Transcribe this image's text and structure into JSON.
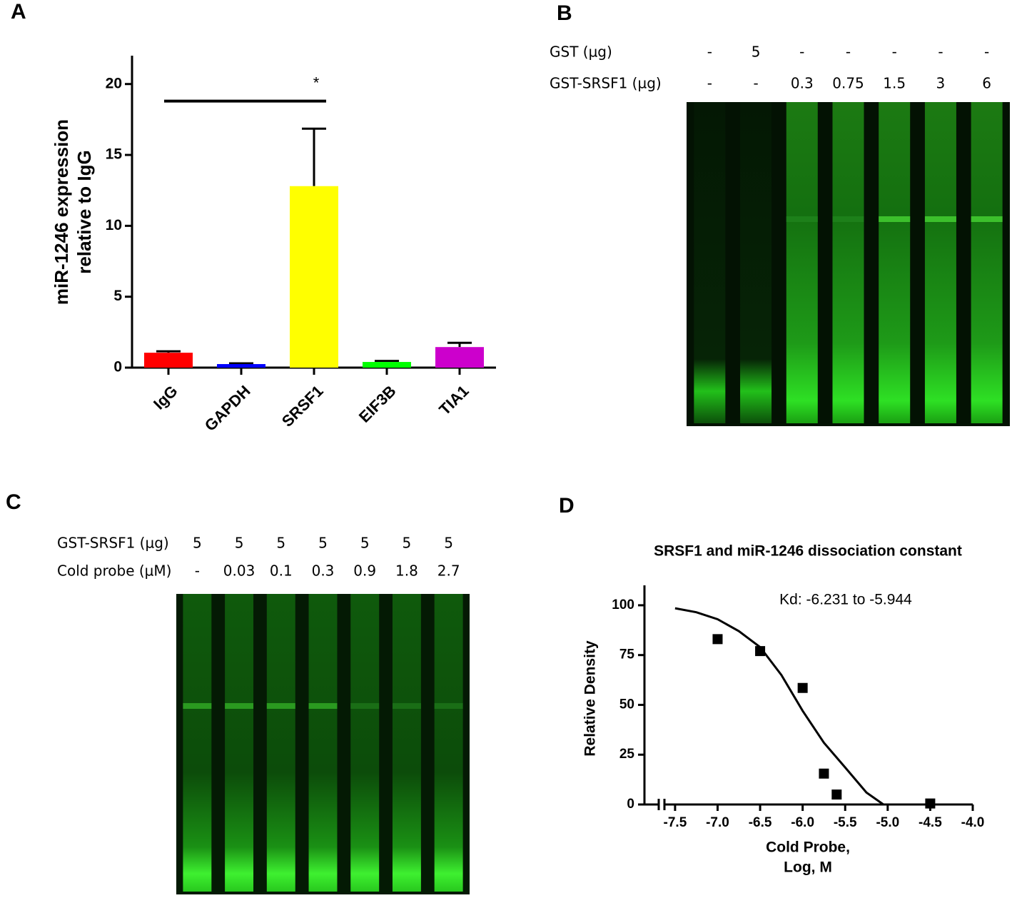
{
  "panels": [
    "A",
    "B",
    "C",
    "D"
  ],
  "chart_data": [
    {
      "type": "bar",
      "ylabel": [
        "miR-1246 expression",
        "relative to IgG"
      ],
      "categories": [
        "IgG",
        "GAPDH",
        "SRSF1",
        "EIF3B",
        "TIA1"
      ],
      "values": [
        1.05,
        0.25,
        12.8,
        0.4,
        1.45
      ],
      "errors": [
        0.1,
        0.05,
        4.05,
        0.07,
        0.3
      ],
      "colors": [
        "#ff0000",
        "#0000ff",
        "#ffff00",
        "#00ff00",
        "#cc00cc"
      ],
      "ylim": [
        0,
        22
      ],
      "yticks": [
        0,
        5,
        10,
        15,
        20
      ],
      "significance": {
        "label": "*",
        "from": "IgG",
        "to": "SRSF1",
        "y": 18.8
      }
    },
    {
      "type": "scatter",
      "title": "SRSF1 and miR-1246 dissociation constant",
      "annotation": "Kd: -6.231 to -5.944",
      "xlabel": [
        "Cold Probe,",
        "Log, M"
      ],
      "ylabel": "Relative Density",
      "x": [
        -7.0,
        -6.5,
        -6.0,
        -5.75,
        -5.6,
        -4.5
      ],
      "values": [
        83,
        77,
        58.5,
        15.5,
        5,
        0.5
      ],
      "color": "#000000",
      "fit": {
        "x": [
          -7.5,
          -7.25,
          -7.0,
          -6.75,
          -6.5,
          -6.25,
          -6.0,
          -5.75,
          -5.5,
          -5.25,
          -5.05
        ],
        "values": [
          98.5,
          96.5,
          93,
          87,
          79,
          65,
          47,
          31,
          18.6,
          6,
          0
        ]
      },
      "xlim": [
        -7.86,
        -4.0
      ],
      "ylim": [
        0,
        110
      ],
      "xticks": [
        -7.5,
        {
          "value": -7.0,
          "label": "-7.0"
        },
        -6.5,
        {
          "value": -6.0,
          "label": "-6.0"
        },
        -5.5,
        {
          "value": -5.0,
          "label": "-5.0"
        },
        -4.5,
        {
          "value": -4.0,
          "label": "-4.0"
        }
      ],
      "yticks": [
        0,
        25,
        50,
        75,
        100
      ]
    }
  ],
  "gels": [
    {
      "rows": [
        {
          "label": "GST (µg)",
          "lanes": [
            "-",
            "5",
            "-",
            "-",
            "-",
            "-",
            "-"
          ]
        },
        {
          "label": "GST-SRSF1 (µg)",
          "lanes": [
            "-",
            "-",
            "0.3",
            "0.75",
            "1.5",
            "3",
            "6"
          ]
        }
      ]
    },
    {
      "rows": [
        {
          "label": "GST-SRSF1 (µg)",
          "lanes": [
            "5",
            "5",
            "5",
            "5",
            "5",
            "5",
            "5"
          ]
        },
        {
          "label": "Cold probe (µM)",
          "lanes": [
            "-",
            "0.03",
            "0.1",
            "0.3",
            "0.9",
            "1.8",
            "2.7"
          ]
        }
      ]
    }
  ]
}
